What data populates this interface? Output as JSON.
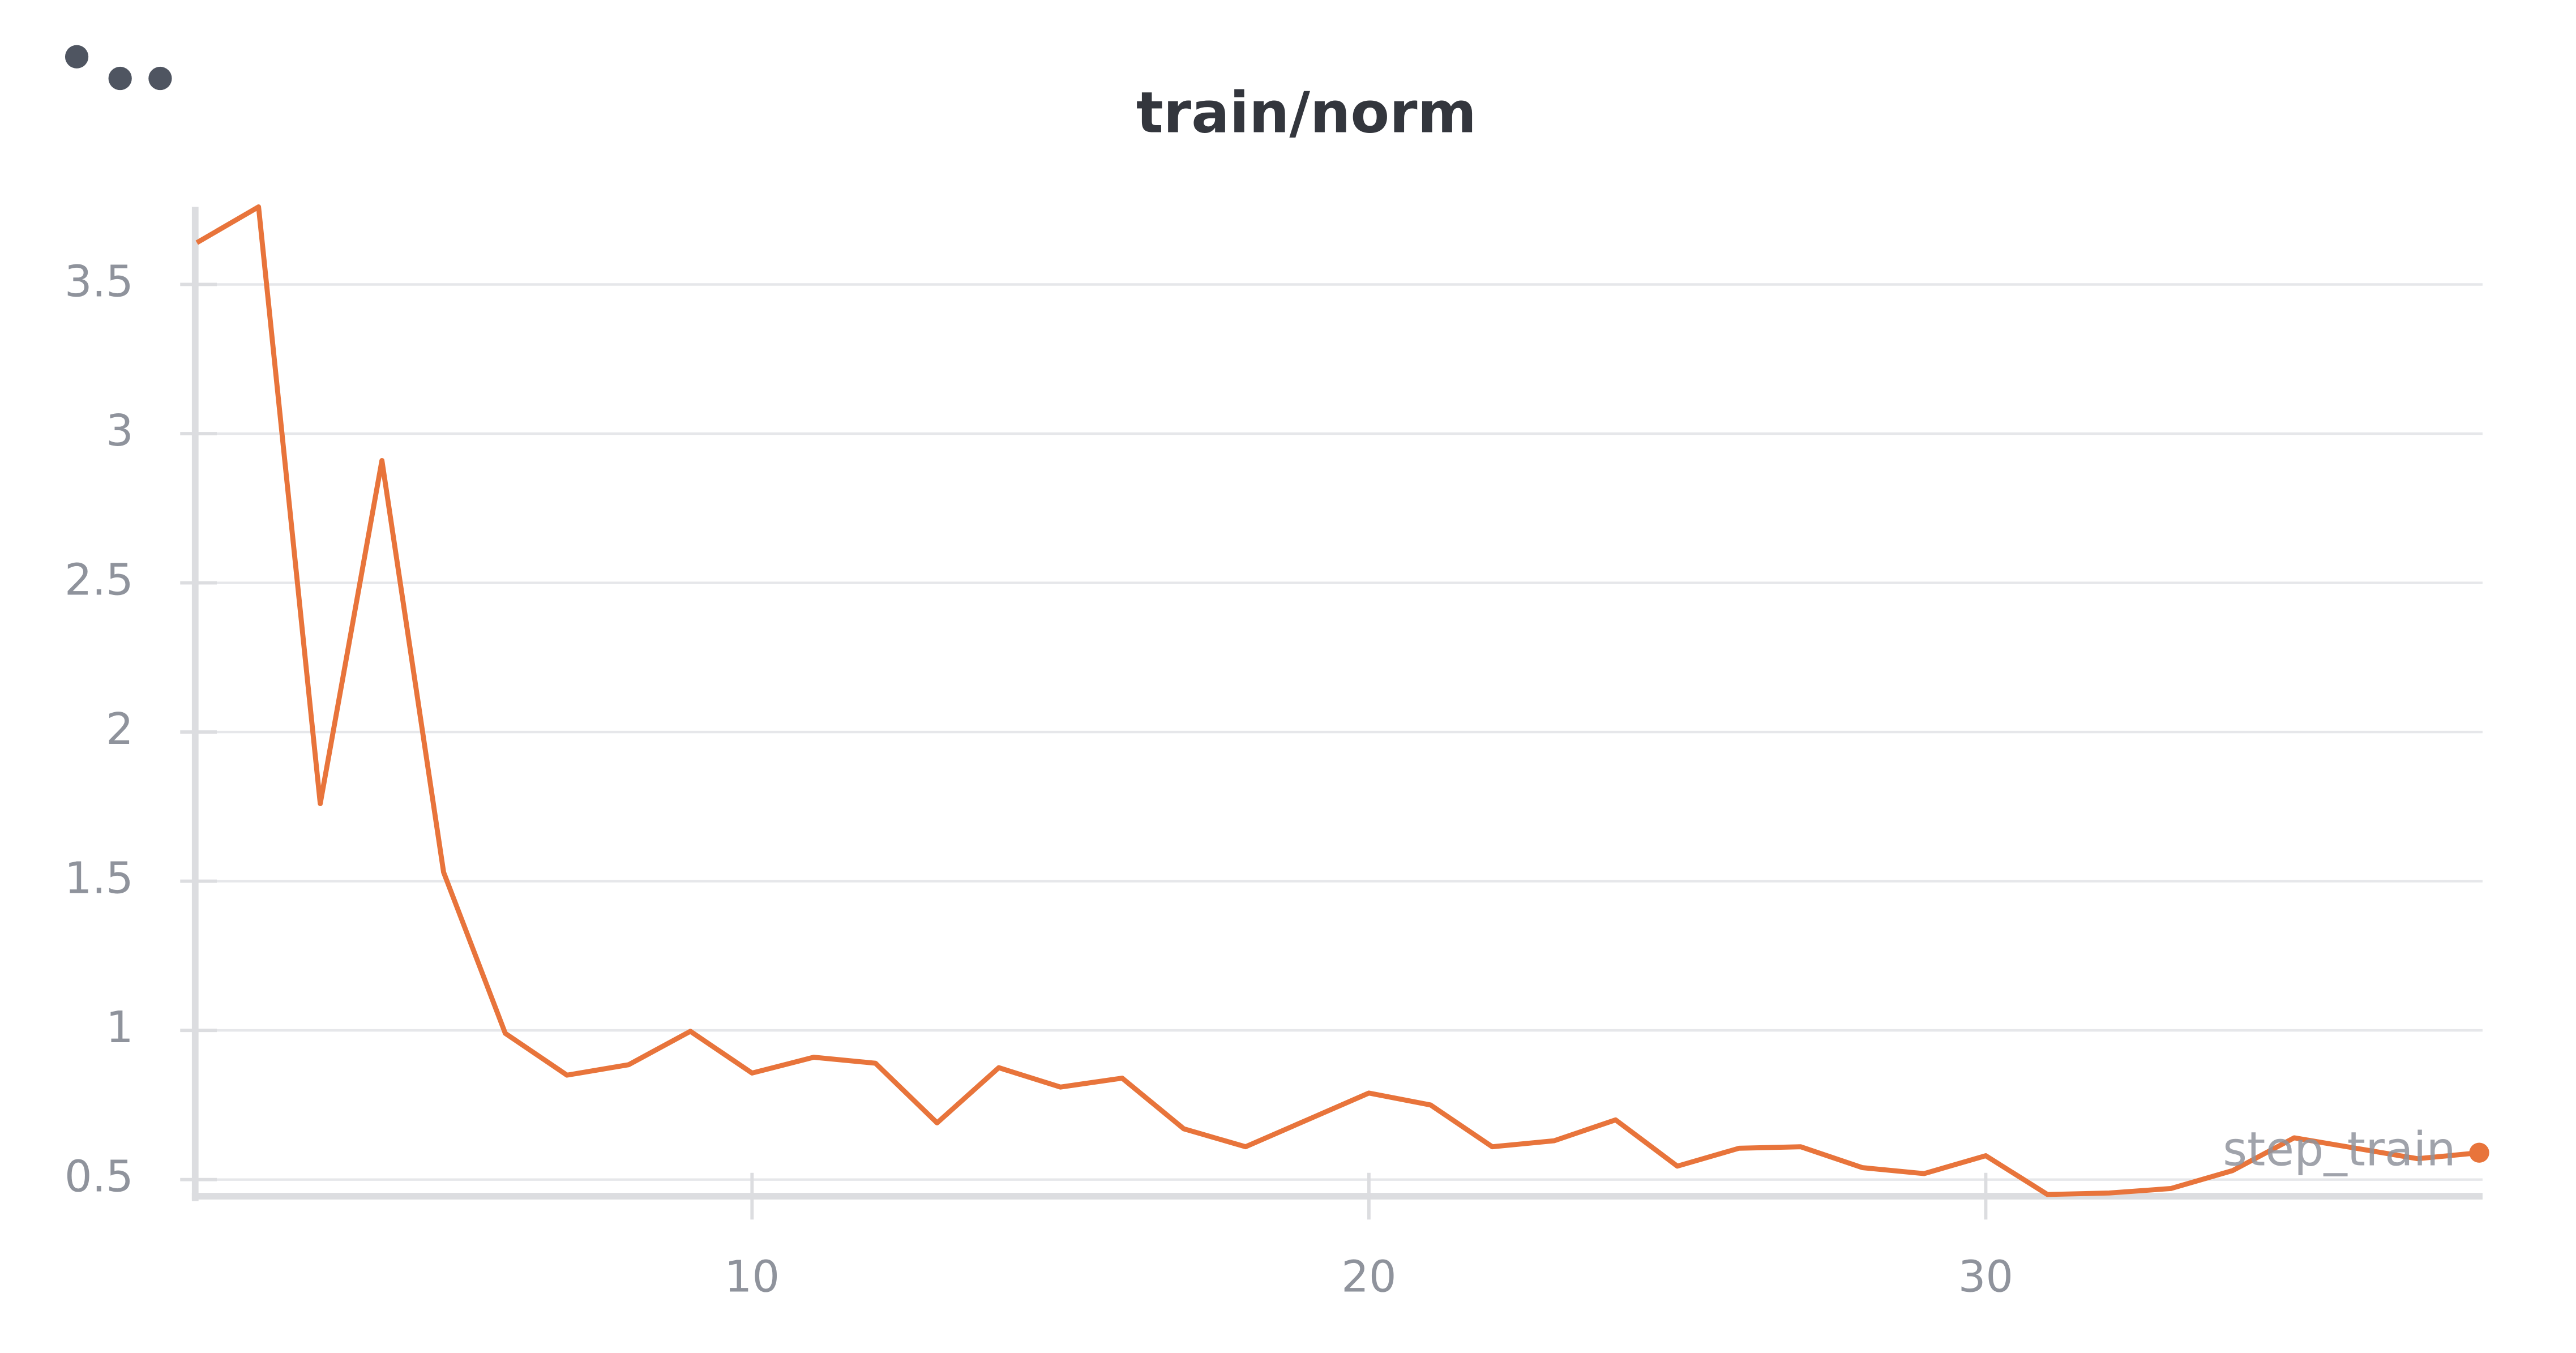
{
  "chart_data": {
    "type": "line",
    "title": "train/norm",
    "x": [
      1,
      2,
      3,
      4,
      5,
      6,
      7,
      8,
      9,
      10,
      11,
      12,
      13,
      14,
      15,
      16,
      17,
      18,
      19,
      20,
      21,
      22,
      23,
      24,
      25,
      26,
      27,
      28,
      29,
      30,
      31,
      32,
      33,
      34,
      35,
      36,
      37,
      38
    ],
    "series": [
      {
        "name": "step_train",
        "color": "#e8743b",
        "values": [
          3.64,
          3.76,
          1.76,
          2.91,
          1.53,
          0.99,
          0.85,
          0.885,
          0.997,
          0.857,
          0.91,
          0.89,
          0.69,
          0.875,
          0.81,
          0.84,
          0.67,
          0.61,
          0.7,
          0.79,
          0.75,
          0.61,
          0.63,
          0.7,
          0.545,
          0.605,
          0.61,
          0.54,
          0.52,
          0.58,
          0.45,
          0.455,
          0.47,
          0.53,
          0.64,
          0.605,
          0.57,
          0.59
        ]
      }
    ],
    "xlim": [
      1,
      38
    ],
    "xticks": [
      10,
      20,
      30
    ],
    "ylim": [
      0.45,
      3.76
    ],
    "yticks": [
      0.5,
      1,
      1.5,
      2,
      2.5,
      3,
      3.5
    ],
    "grid": true
  }
}
